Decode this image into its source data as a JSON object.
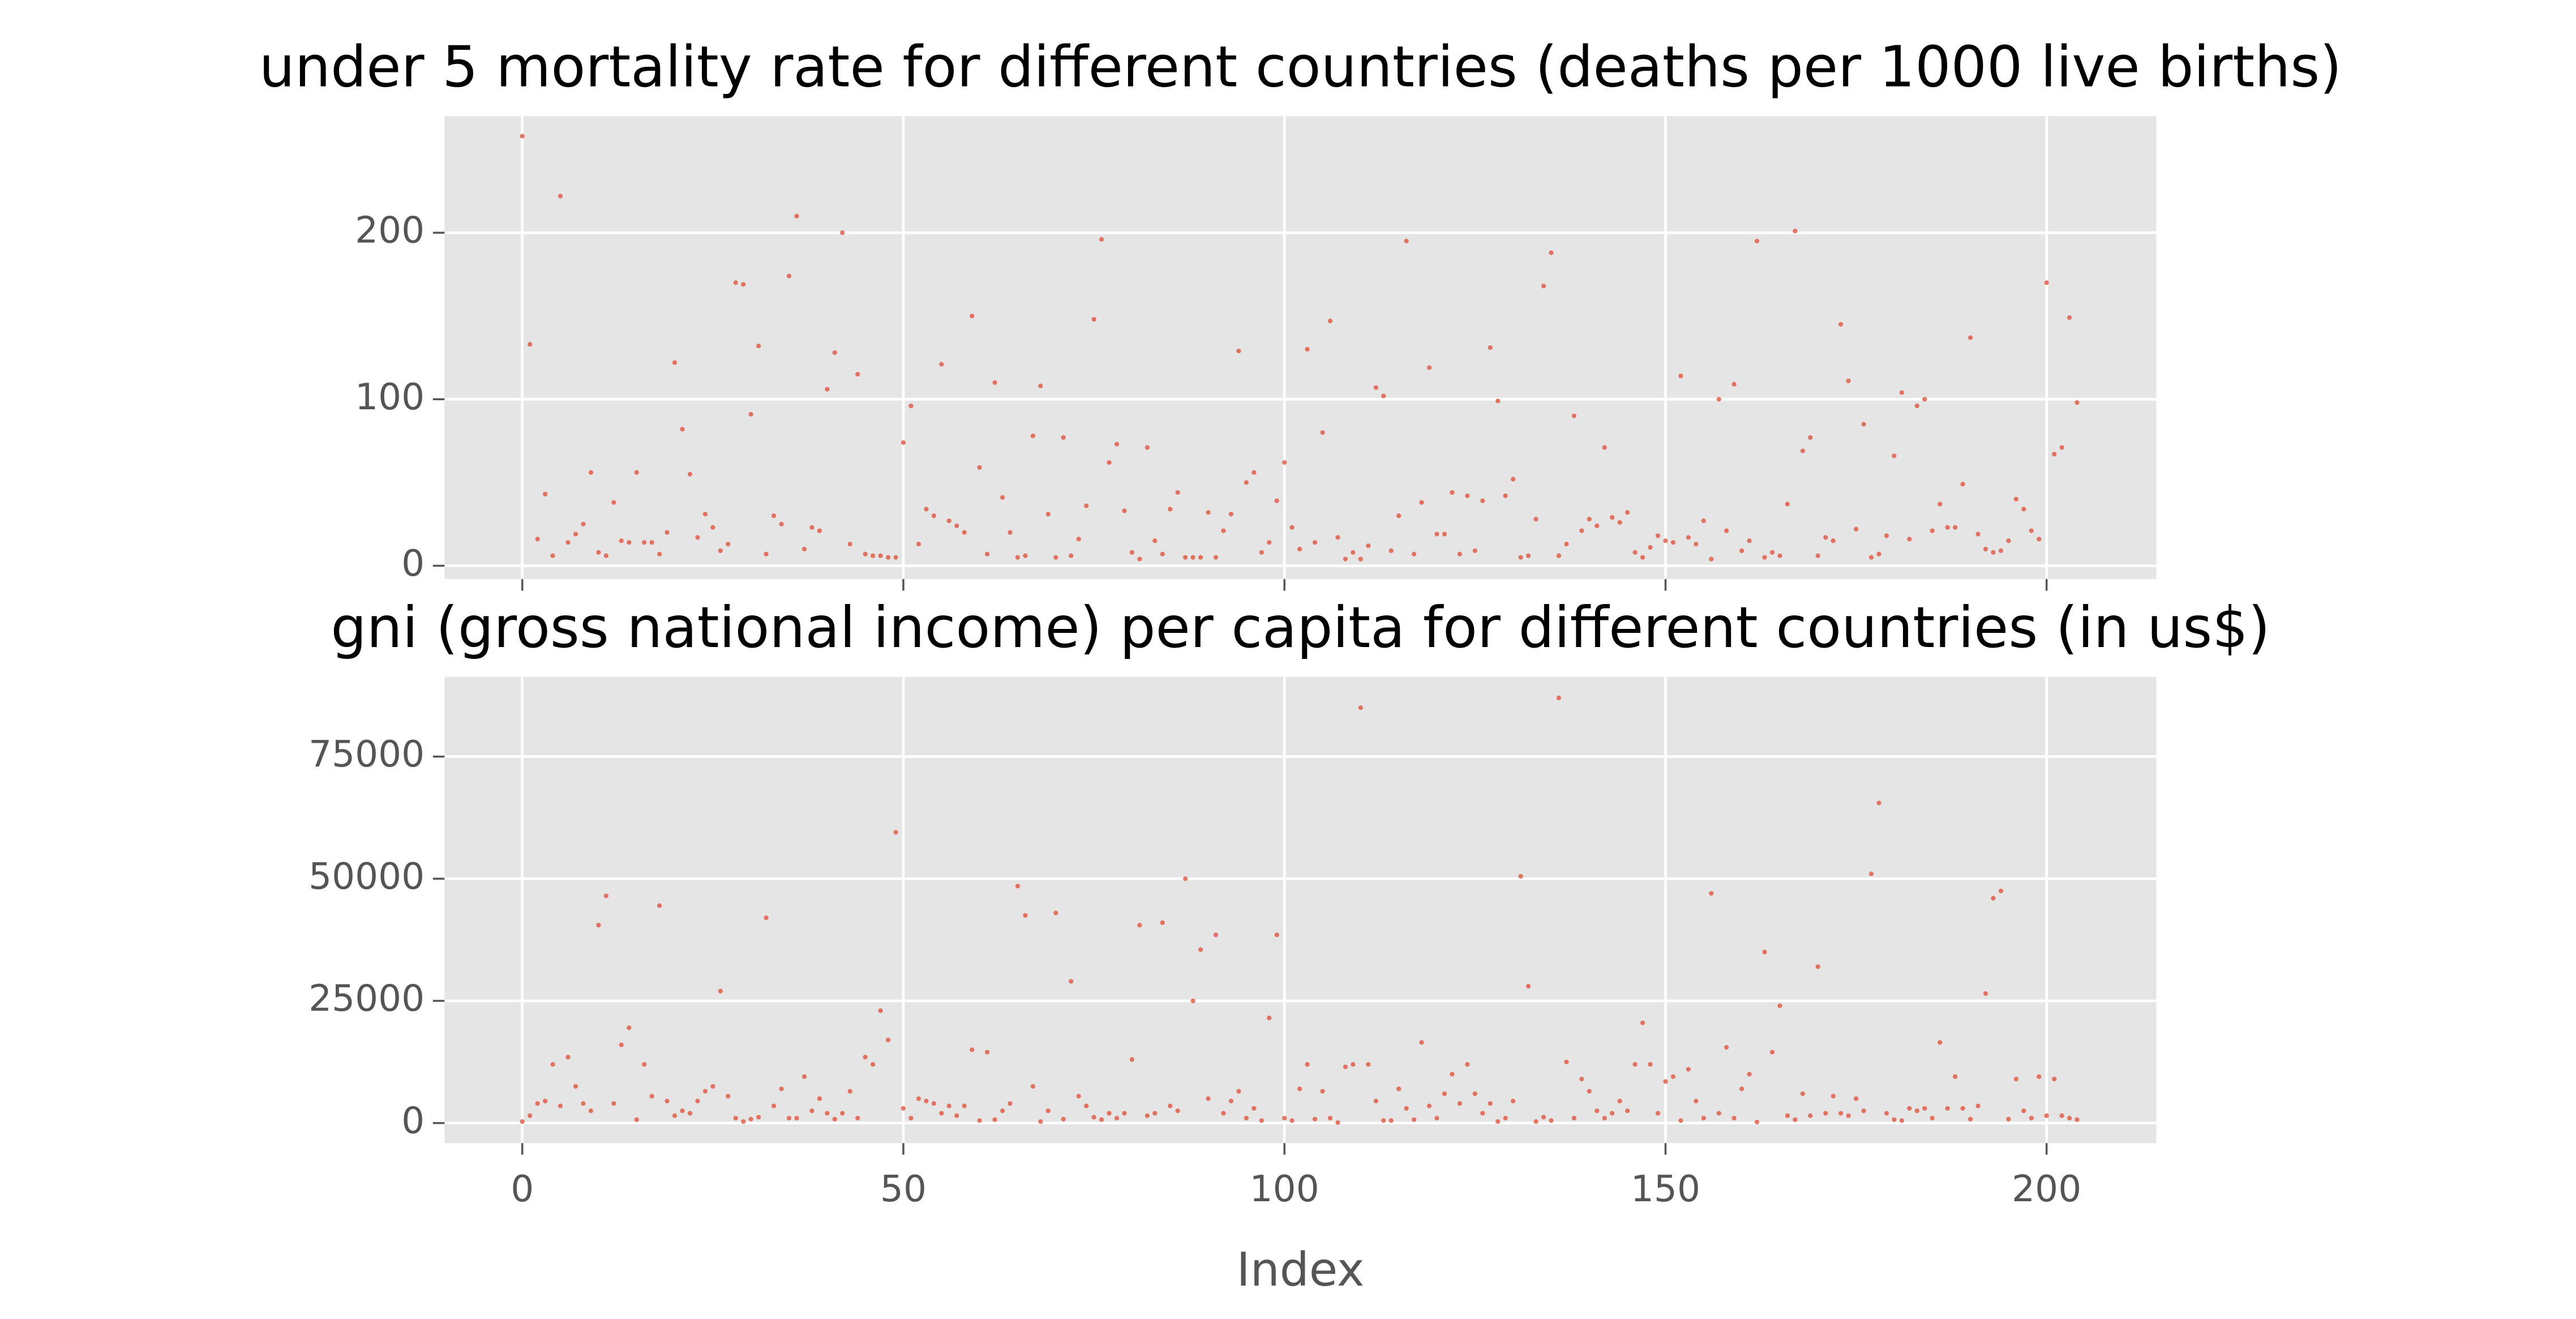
{
  "chart_data": [
    {
      "type": "scatter",
      "title": "under 5 mortality rate for different countries (deaths per 1000 live births)",
      "color": "#e24a33",
      "grid": true,
      "xticklabels": false,
      "xlim": [
        -10.2,
        214.4
      ],
      "ylim": [
        -8,
        270
      ],
      "xticks": [
        0,
        50,
        100,
        150,
        200
      ],
      "yticks": [
        0,
        100,
        200
      ],
      "x": [
        0,
        1,
        2,
        3,
        4,
        5,
        6,
        7,
        8,
        9,
        10,
        11,
        12,
        13,
        14,
        15,
        16,
        17,
        18,
        19,
        20,
        21,
        22,
        23,
        24,
        25,
        26,
        27,
        28,
        29,
        30,
        31,
        32,
        33,
        34,
        35,
        36,
        37,
        38,
        39,
        40,
        41,
        42,
        43,
        44,
        45,
        46,
        47,
        48,
        49,
        50,
        51,
        52,
        53,
        54,
        55,
        56,
        57,
        58,
        59,
        60,
        61,
        62,
        63,
        64,
        65,
        66,
        67,
        68,
        69,
        70,
        71,
        72,
        73,
        74,
        75,
        76,
        77,
        78,
        79,
        80,
        81,
        82,
        83,
        84,
        85,
        86,
        87,
        88,
        89,
        90,
        91,
        92,
        93,
        94,
        95,
        96,
        97,
        98,
        99,
        100,
        101,
        102,
        103,
        104,
        105,
        106,
        107,
        108,
        109,
        110,
        111,
        112,
        113,
        114,
        115,
        116,
        117,
        118,
        119,
        120,
        121,
        122,
        123,
        124,
        125,
        126,
        127,
        128,
        129,
        130,
        131,
        132,
        133,
        134,
        135,
        136,
        137,
        138,
        139,
        140,
        141,
        142,
        143,
        144,
        145,
        146,
        147,
        148,
        149,
        150,
        151,
        152,
        153,
        154,
        155,
        156,
        157,
        158,
        159,
        160,
        161,
        162,
        163,
        164,
        165,
        166,
        167,
        168,
        169,
        170,
        171,
        172,
        173,
        174,
        175,
        176,
        177,
        178,
        179,
        180,
        181,
        182,
        183,
        184,
        185,
        186,
        187,
        188,
        189,
        190,
        191,
        192,
        193,
        194,
        195,
        196,
        197,
        198,
        199,
        200,
        201,
        202,
        203,
        204
      ],
      "values": [
        258,
        133,
        16,
        43,
        6,
        222,
        14,
        19,
        25,
        56,
        8,
        6,
        38,
        15,
        14,
        56,
        14,
        14,
        7,
        20,
        122,
        82,
        55,
        17,
        31,
        23,
        9,
        13,
        170,
        169,
        91,
        132,
        7,
        30,
        25,
        174,
        210,
        10,
        23,
        21,
        106,
        128,
        200,
        13,
        115,
        7,
        6,
        6,
        5,
        5,
        74,
        96,
        13,
        34,
        30,
        121,
        27,
        24,
        20,
        150,
        59,
        7,
        110,
        41,
        20,
        5,
        6,
        78,
        108,
        31,
        5,
        77,
        6,
        16,
        36,
        148,
        196,
        62,
        73,
        33,
        8,
        4,
        71,
        15,
        7,
        34,
        44,
        5,
        5,
        5,
        32,
        5,
        21,
        31,
        129,
        50,
        56,
        8,
        14,
        39,
        62,
        23,
        10,
        130,
        14,
        80,
        147,
        17,
        4,
        8,
        4,
        12,
        107,
        102,
        9,
        30,
        195,
        7,
        38,
        119,
        19,
        19,
        44,
        7,
        42,
        9,
        39,
        131,
        99,
        42,
        52,
        5,
        6,
        28,
        168,
        188,
        6,
        13,
        90,
        21,
        28,
        24,
        71,
        29,
        26,
        32,
        8,
        5,
        11,
        18,
        15,
        14,
        114,
        17,
        13,
        27,
        4,
        100,
        21,
        109,
        9,
        15,
        195,
        5,
        8,
        6,
        37,
        201,
        69,
        77,
        6,
        17,
        15,
        145,
        111,
        22,
        85,
        5,
        7,
        18,
        66,
        104,
        16,
        96,
        100,
        21,
        37,
        23,
        23,
        49,
        137,
        19,
        10,
        8,
        9,
        15,
        40,
        34,
        21,
        16,
        170,
        67,
        71,
        149,
        98
      ]
    },
    {
      "type": "scatter",
      "title": "gni (gross national income) per capita for different countries (in us$)",
      "color": "#e24a33",
      "grid": true,
      "xlabel": "Index",
      "xlim": [
        -10.2,
        214.4
      ],
      "ylim": [
        -4100,
        91300
      ],
      "xticks": [
        0,
        50,
        100,
        150,
        200
      ],
      "yticks": [
        0,
        25000,
        50000,
        75000
      ],
      "x": [
        0,
        1,
        2,
        3,
        4,
        5,
        6,
        7,
        8,
        9,
        10,
        11,
        12,
        13,
        14,
        15,
        16,
        17,
        18,
        19,
        20,
        21,
        22,
        23,
        24,
        25,
        26,
        27,
        28,
        29,
        30,
        31,
        32,
        33,
        34,
        35,
        36,
        37,
        38,
        39,
        40,
        41,
        42,
        43,
        44,
        45,
        46,
        47,
        48,
        49,
        50,
        51,
        52,
        53,
        54,
        55,
        56,
        57,
        58,
        59,
        60,
        61,
        62,
        63,
        64,
        65,
        66,
        67,
        68,
        69,
        70,
        71,
        72,
        73,
        74,
        75,
        76,
        77,
        78,
        79,
        80,
        81,
        82,
        83,
        84,
        85,
        86,
        87,
        88,
        89,
        90,
        91,
        92,
        93,
        94,
        95,
        96,
        97,
        98,
        99,
        100,
        101,
        102,
        103,
        104,
        105,
        106,
        107,
        108,
        109,
        110,
        111,
        112,
        113,
        114,
        115,
        116,
        117,
        118,
        119,
        120,
        121,
        122,
        123,
        124,
        125,
        126,
        127,
        128,
        129,
        130,
        131,
        132,
        133,
        134,
        135,
        136,
        137,
        138,
        139,
        140,
        141,
        142,
        143,
        144,
        145,
        146,
        147,
        148,
        149,
        150,
        151,
        152,
        153,
        154,
        155,
        156,
        157,
        158,
        159,
        160,
        161,
        162,
        163,
        164,
        165,
        166,
        167,
        168,
        169,
        170,
        171,
        172,
        173,
        174,
        175,
        176,
        177,
        178,
        179,
        180,
        181,
        182,
        183,
        184,
        185,
        186,
        187,
        188,
        189,
        190,
        191,
        192,
        193,
        194,
        195,
        196,
        197,
        198,
        199,
        200,
        201,
        202,
        203,
        204
      ],
      "values": [
        300,
        1500,
        4000,
        4500,
        12000,
        3500,
        13500,
        7500,
        4000,
        2500,
        40500,
        46500,
        4000,
        16000,
        19500,
        700,
        12000,
        5500,
        44500,
        4500,
        1500,
        2500,
        2000,
        4500,
        6500,
        7500,
        27000,
        5500,
        1000,
        300,
        800,
        1200,
        42000,
        3500,
        7000,
        1000,
        1000,
        9500,
        2500,
        5000,
        2000,
        800,
        2000,
        6500,
        1000,
        13500,
        12000,
        23000,
        17000,
        59500,
        3000,
        1000,
        5000,
        4500,
        4000,
        2000,
        3500,
        1500,
        3500,
        15000,
        500,
        14500,
        700,
        2500,
        4000,
        48500,
        42500,
        7500,
        300,
        2500,
        43000,
        800,
        29000,
        5500,
        3500,
        1200,
        700,
        2000,
        1000,
        2000,
        13000,
        40500,
        1500,
        2000,
        41000,
        3500,
        2500,
        50000,
        25000,
        35500,
        5000,
        38500,
        2000,
        4500,
        6500,
        1000,
        3000,
        500,
        21500,
        38500,
        1000,
        500,
        7000,
        12000,
        800,
        6500,
        1000,
        100,
        11500,
        12000,
        85000,
        12000,
        4500,
        500,
        500,
        7000,
        3000,
        700,
        16500,
        3500,
        1000,
        6000,
        10000,
        4000,
        12000,
        6000,
        2000,
        4000,
        300,
        1000,
        4500,
        50500,
        28000,
        300,
        1200,
        500,
        87000,
        12500,
        1000,
        9000,
        6500,
        2500,
        1000,
        2000,
        4500,
        2500,
        12000,
        20500,
        12000,
        2000,
        8500,
        9500,
        500,
        11000,
        4500,
        1000,
        47000,
        2000,
        15500,
        1000,
        7000,
        10000,
        200,
        35000,
        14500,
        24000,
        1500,
        700,
        6000,
        1500,
        32000,
        2000,
        5500,
        2000,
        1500,
        5000,
        2500,
        51000,
        65500,
        2000,
        700,
        500,
        3000,
        2500,
        3000,
        1000,
        16500,
        3000,
        9500,
        3000,
        800,
        3500,
        26500,
        46000,
        47500,
        800,
        9000,
        2500,
        1000,
        9500,
        1500,
        9000,
        1500,
        1000,
        700
      ]
    }
  ]
}
